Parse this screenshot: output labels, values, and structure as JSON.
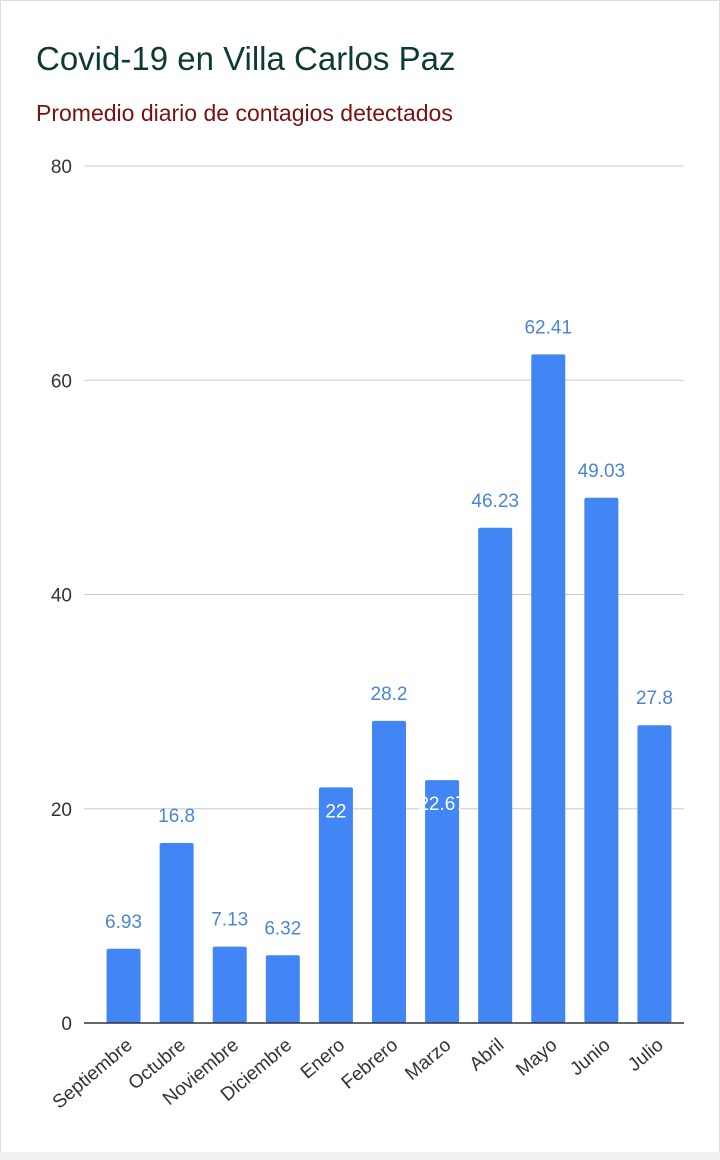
{
  "title": "Covid-19 en Villa Carlos Paz",
  "subtitle": "Promedio diario de contagios detectados",
  "colors": {
    "title": "#0d3b33",
    "subtitle": "#7b1010",
    "bar": "#4285f4",
    "label": "#4a86d4",
    "inside_label": "#ffffff",
    "grid": "#cccccc",
    "axis": "#333333"
  },
  "chart_data": {
    "type": "bar",
    "title": "Covid-19 en Villa Carlos Paz",
    "subtitle": "Promedio diario de contagios detectados",
    "xlabel": "",
    "ylabel": "",
    "categories": [
      "Septiembre",
      "Octubre",
      "Noviembre",
      "Diciembre",
      "Enero",
      "Febrero",
      "Marzo",
      "Abril",
      "Mayo",
      "Junio",
      "Julio"
    ],
    "values": [
      6.93,
      16.8,
      7.13,
      6.32,
      22,
      28.2,
      22.67,
      46.23,
      62.41,
      49.03,
      27.8
    ],
    "data_labels": [
      "6.93",
      "16.8",
      "7.13",
      "6.32",
      "22",
      "28.2",
      "22.67",
      "46.23",
      "62.41",
      "49.03",
      "27.8"
    ],
    "ylim": [
      0,
      80
    ],
    "yticks": [
      0,
      20,
      40,
      60,
      80
    ],
    "grid": true,
    "legend": "none"
  }
}
